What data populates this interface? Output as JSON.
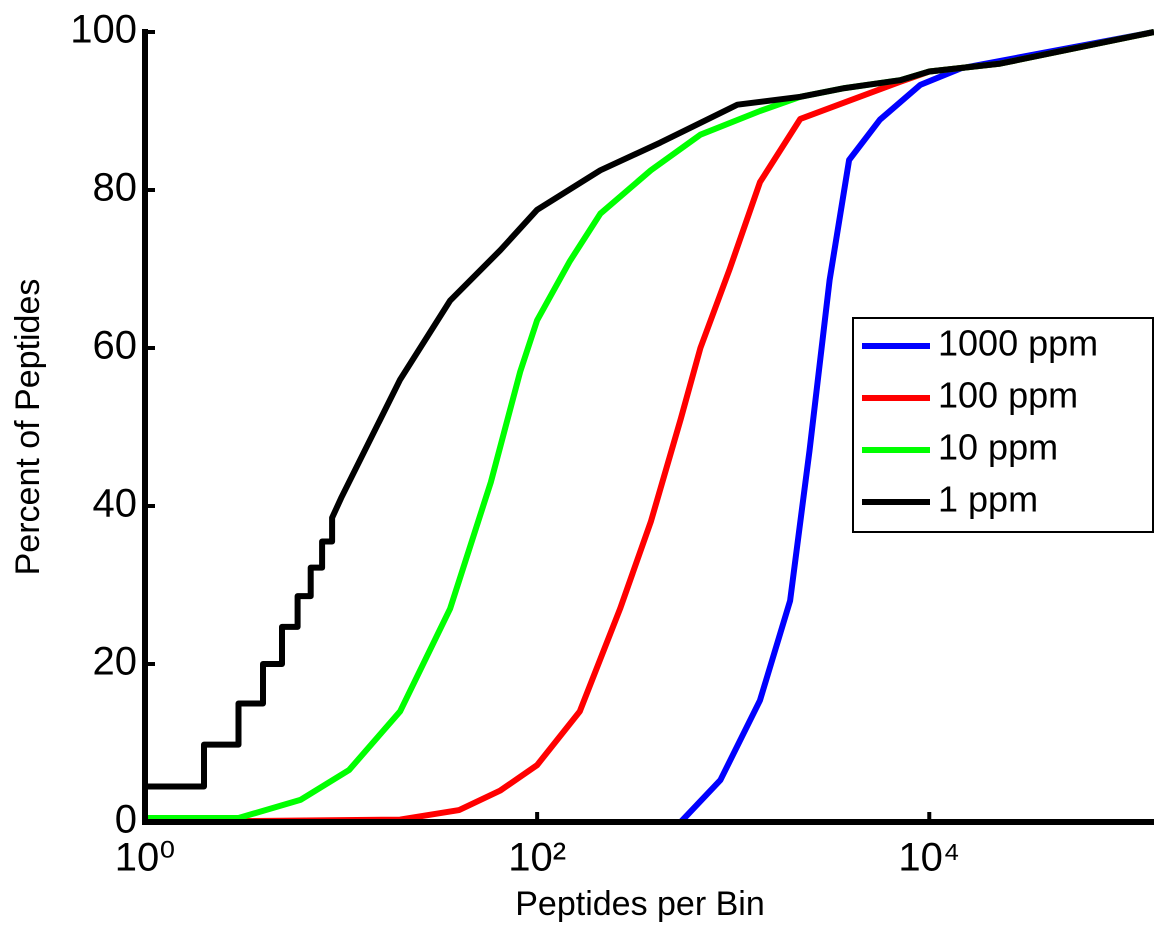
{
  "chart_data": {
    "type": "line",
    "x_label": "Peptides per Bin",
    "y_label": "Percent of Peptides",
    "xscale": "log",
    "xlim": [
      1,
      140000
    ],
    "ylim": [
      0,
      100
    ],
    "xticks": [
      {
        "value": 1,
        "label": "10⁰"
      },
      {
        "value": 100,
        "label": "10²"
      },
      {
        "value": 10000,
        "label": "10⁴"
      }
    ],
    "yticks": [
      0,
      20,
      40,
      60,
      80,
      100
    ],
    "legend_position": "right",
    "series": [
      {
        "name": "1000 ppm",
        "color": "#0000ff",
        "x": [
          540,
          860,
          1370,
          1950,
          2450,
          3100,
          3900,
          5600,
          9000,
          14500,
          140000
        ],
        "values": [
          0,
          5.3,
          15.4,
          28,
          47,
          68.6,
          83.8,
          88.9,
          93.3,
          95.4,
          100
        ]
      },
      {
        "name": "100 ppm",
        "color": "#ff0000",
        "x": [
          1,
          20,
          40,
          65,
          100,
          165,
          265,
          380,
          540,
          680,
          960,
          1370,
          2200,
          4000,
          7100,
          10000,
          23000,
          140000
        ],
        "values": [
          0,
          0.3,
          1.5,
          4,
          7.2,
          14,
          27,
          38,
          51,
          60,
          70,
          81,
          89,
          91.4,
          93.7,
          95,
          96,
          100
        ]
      },
      {
        "name": "10 ppm",
        "color": "#00ff00",
        "x": [
          1,
          3,
          6.2,
          11,
          20,
          36,
          58,
          82,
          100,
          147,
          210,
          380,
          680,
          1370,
          2200,
          3700,
          7100,
          10000,
          23000,
          140000
        ],
        "values": [
          0.5,
          0.5,
          2.8,
          6.6,
          14,
          27,
          43,
          57,
          63.5,
          71,
          77,
          82.5,
          87,
          90,
          91.8,
          92.9,
          93.9,
          95,
          96,
          100
        ]
      },
      {
        "name": "1 ppm",
        "color": "#000000",
        "x": [
          1,
          2,
          2,
          3,
          3,
          4,
          4,
          5,
          5,
          6,
          6,
          7,
          7,
          8,
          8,
          9,
          9,
          10,
          20,
          36,
          65,
          100,
          210,
          425,
          1050,
          2200,
          3700,
          7100,
          10000,
          23000,
          140000
        ],
        "values": [
          4.5,
          4.5,
          9.8,
          9.8,
          15,
          15,
          20,
          20,
          24.7,
          24.7,
          28.6,
          28.6,
          32.2,
          32.2,
          35.5,
          35.5,
          38.5,
          41,
          56,
          66,
          72.4,
          77.5,
          82.5,
          86,
          90.8,
          91.8,
          92.9,
          93.9,
          95,
          96,
          100
        ]
      }
    ]
  }
}
